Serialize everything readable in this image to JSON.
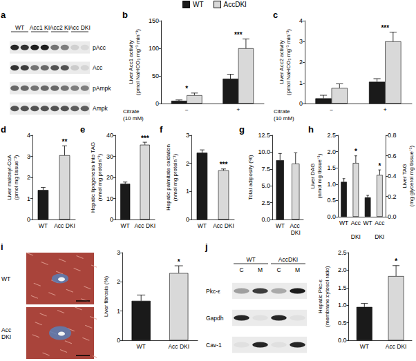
{
  "legend": [
    {
      "name": "WT",
      "color": "#1a1a1a"
    },
    {
      "name": "AccDKI",
      "color": "#d9d9d9"
    }
  ],
  "chart_data": [
    {
      "panel": "a",
      "type": "blot",
      "groups": [
        "WT",
        "Acc1 KI",
        "Acc2 KI",
        "Acc DKI"
      ],
      "rows": [
        "pAcc",
        "Acc",
        "pAmpk",
        "Ampk"
      ]
    },
    {
      "panel": "b",
      "type": "bar",
      "ylabel": "Liver Acc1 activity\n(pmol NaHCO₃ mg⁻¹ min⁻¹)",
      "xlabel": "Citrate\n(10 mM)",
      "categories": [
        "−",
        "+"
      ],
      "ylim": [
        0,
        150
      ],
      "yticks": [
        0,
        50,
        100,
        150
      ],
      "grid": false,
      "series": [
        {
          "name": "WT",
          "color": "#1a1a1a",
          "values": [
            5,
            45
          ],
          "errors": [
            1.5,
            8
          ]
        },
        {
          "name": "AccDKI",
          "color": "#d9d9d9",
          "values": [
            15,
            100
          ],
          "errors": [
            4,
            17
          ],
          "annotations": [
            "*",
            "***"
          ]
        }
      ]
    },
    {
      "panel": "c",
      "type": "bar",
      "ylabel": "Liver Acc2 activity\n(pmol NaHCO₃ mg⁻¹ min⁻¹)",
      "xlabel": "Citrate\n(10 mM)",
      "categories": [
        "−",
        "+"
      ],
      "ylim": [
        0,
        4
      ],
      "yticks": [
        0,
        1,
        2,
        3,
        4
      ],
      "grid": false,
      "series": [
        {
          "name": "WT",
          "color": "#1a1a1a",
          "values": [
            0.25,
            1.05
          ],
          "errors": [
            0.15,
            0.15
          ]
        },
        {
          "name": "AccDKI",
          "color": "#d9d9d9",
          "values": [
            0.75,
            3.0
          ],
          "errors": [
            0.2,
            0.45
          ],
          "annotations": [
            null,
            "***"
          ]
        }
      ]
    },
    {
      "panel": "d",
      "type": "bar",
      "ylabel": "Liver malonyl-CoA\n(pmol mg tissue⁻¹)",
      "categories": [
        "WT",
        "Acc DKI"
      ],
      "values": [
        1.4,
        3.05
      ],
      "errors": [
        0.12,
        0.45
      ],
      "colors": [
        "#1a1a1a",
        "#d9d9d9"
      ],
      "annotations": [
        null,
        "**"
      ],
      "ylim": [
        0,
        4
      ],
      "yticks": [
        0,
        1,
        2,
        3,
        4
      ],
      "grid": false
    },
    {
      "panel": "e",
      "type": "bar",
      "ylabel": "Hepatic lipogenesis into TAG\n(nmol mg protein⁻¹)",
      "categories": [
        "WT",
        "Acc DKI"
      ],
      "values": [
        17,
        35.5
      ],
      "errors": [
        0.8,
        1.2
      ],
      "colors": [
        "#1a1a1a",
        "#d9d9d9"
      ],
      "annotations": [
        null,
        "***"
      ],
      "ylim": [
        0,
        40
      ],
      "yticks": [
        0,
        10,
        20,
        30,
        40
      ],
      "grid": false
    },
    {
      "panel": "f",
      "type": "bar",
      "ylabel": "Hepatic palmitate oxidation\n(nmol mg protein⁻¹)",
      "categories": [
        "WT",
        "Acc DKI"
      ],
      "values": [
        2.38,
        1.75
      ],
      "errors": [
        0.1,
        0.05
      ],
      "colors": [
        "#1a1a1a",
        "#d9d9d9"
      ],
      "annotations": [
        null,
        "***"
      ],
      "ylim": [
        0,
        3
      ],
      "yticks": [
        0,
        1,
        2,
        3
      ],
      "grid": false
    },
    {
      "panel": "g",
      "type": "bar",
      "ylabel": "Total adiposity (%)",
      "categories": [
        "WT",
        "Acc DKI"
      ],
      "values": [
        8.8,
        8.3
      ],
      "errors": [
        1.0,
        1.6
      ],
      "colors": [
        "#1a1a1a",
        "#d9d9d9"
      ],
      "ylim": [
        0,
        12.5
      ],
      "yticks": [
        {
          "value": 0,
          "label": "0.0"
        },
        2.5,
        {
          "value": 5,
          "label": "5.0"
        },
        7.5,
        {
          "value": 10,
          "label": "10.0"
        },
        12.5
      ],
      "grid": false
    },
    {
      "panel": "h",
      "type": "bar",
      "ylabel": "Liver DAG\n(nmol mg tissue⁻¹)",
      "y2label": "Liver TAG\n(mg glycerol mg tissue⁻¹)",
      "categories": [
        "WT",
        "Acc DKI",
        "WT",
        "Acc DKI"
      ],
      "series": [
        {
          "axis": "y",
          "values": [
            1.07,
            1.65,
            null,
            null
          ],
          "errors": [
            0.1,
            0.22,
            null,
            null
          ],
          "colors": [
            "#1a1a1a",
            "#d9d9d9",
            null,
            null
          ],
          "annotations": [
            null,
            "*",
            null,
            null
          ]
        },
        {
          "axis": "y2",
          "values": [
            null,
            null,
            0.19,
            0.41
          ],
          "errors": [
            null,
            null,
            0.02,
            0.05
          ],
          "colors": [
            null,
            null,
            "#1a1a1a",
            "#d9d9d9"
          ],
          "annotations": [
            null,
            null,
            null,
            "*"
          ]
        }
      ],
      "ylim": [
        0,
        2.5
      ],
      "yticks": [
        {
          "value": 0,
          "label": "0.0"
        },
        0.5,
        {
          "value": 1,
          "label": "1.0"
        },
        1.5,
        {
          "value": 2,
          "label": "2.0"
        },
        2.5
      ],
      "y2lim": [
        0,
        0.8
      ],
      "y2ticks": [
        {
          "value": 0,
          "label": "0.0"
        },
        0.2,
        0.4,
        0.6,
        0.8
      ],
      "grid": false
    },
    {
      "panel": "i",
      "type": "micrograph",
      "labels": [
        "WT",
        "Acc DKI"
      ]
    },
    {
      "type": "bar",
      "ylabel": "Liver fibrosis (%)",
      "categories": [
        "WT",
        "Acc DKI"
      ],
      "values": [
        1.35,
        2.3
      ],
      "errors": [
        0.2,
        0.25
      ],
      "colors": [
        "#1a1a1a",
        "#d9d9d9"
      ],
      "annotations": [
        null,
        "*"
      ],
      "ylim": [
        0,
        3
      ],
      "yticks": [
        0,
        1,
        2,
        3
      ],
      "grid": false
    },
    {
      "panel": "j",
      "type": "blot",
      "groups": [
        "WT",
        "AccDKI"
      ],
      "lanes": [
        "C",
        "M"
      ],
      "rows": [
        "Pkc-ε",
        "Gapdh",
        "Cav-1"
      ]
    },
    {
      "type": "bar",
      "ylabel": "Hepatic Pkc-ε\n(membrane:cytosol ratio)",
      "categories": [
        "WT",
        "Acc DKI"
      ],
      "values": [
        0.95,
        1.83
      ],
      "errors": [
        0.1,
        0.3
      ],
      "colors": [
        "#1a1a1a",
        "#d9d9d9"
      ],
      "annotations": [
        null,
        "*"
      ],
      "ylim": [
        0,
        2.5
      ],
      "yticks": [
        {
          "value": 0,
          "label": "0.0"
        },
        0.5,
        {
          "value": 1,
          "label": "1.0"
        },
        1.5,
        {
          "value": 2,
          "label": "2.0"
        },
        2.5
      ],
      "grid": false
    }
  ]
}
